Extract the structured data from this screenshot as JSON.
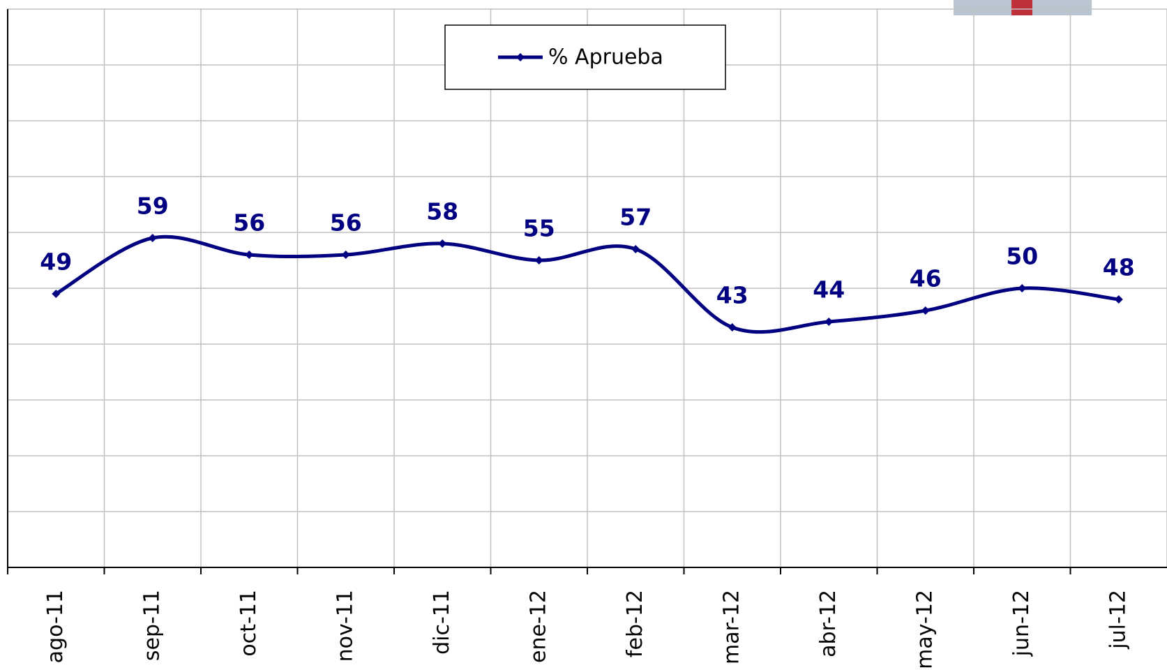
{
  "chart_data": {
    "type": "line",
    "categories": [
      "ago-11",
      "sep-11",
      "oct-11",
      "nov-11",
      "dic-11",
      "ene-12",
      "feb-12",
      "mar-12",
      "abr-12",
      "may-12",
      "jun-12",
      "jul-12"
    ],
    "series": [
      {
        "name": "% Aprueba",
        "color": "#000080",
        "values": [
          49,
          59,
          56,
          56,
          58,
          55,
          57,
          43,
          44,
          46,
          50,
          48
        ]
      }
    ],
    "ylim": [
      0,
      100
    ],
    "yticks": [
      0,
      10,
      20,
      30,
      40,
      50,
      60,
      70,
      80,
      90,
      100
    ],
    "grid": true
  }
}
